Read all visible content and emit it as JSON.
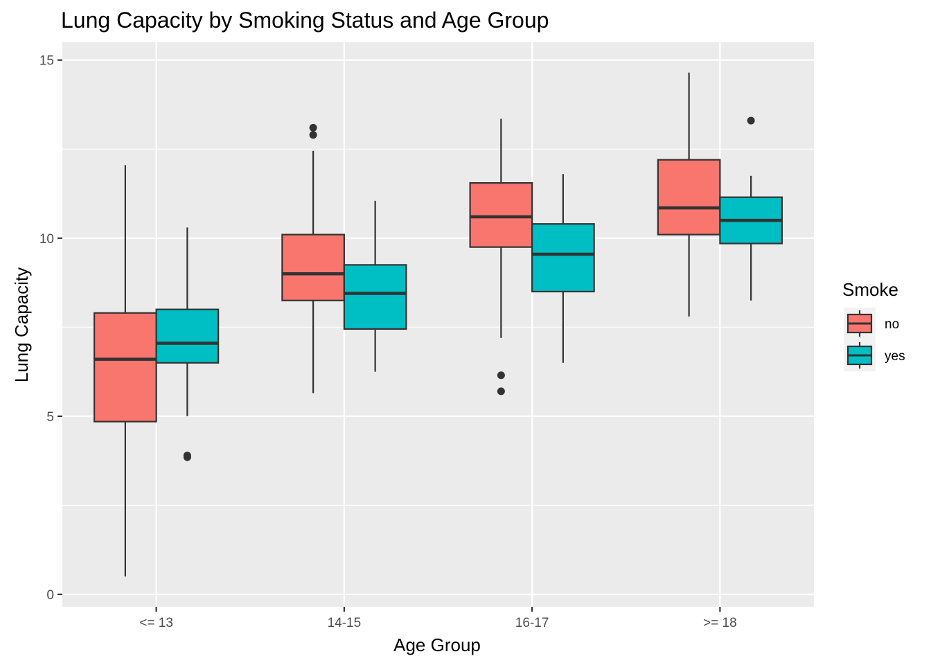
{
  "chart_data": {
    "type": "boxplot",
    "title": "Lung Capacity by Smoking Status and Age Group",
    "xlabel": "Age Group",
    "ylabel": "Lung Capacity",
    "categories": [
      "<= 13",
      "14-15",
      "16-17",
      ">= 18"
    ],
    "ylim": [
      -0.35,
      15.5
    ],
    "yticks": [
      0,
      5,
      10,
      15
    ],
    "grid": true,
    "legend": {
      "title": "Smoke",
      "position": "right"
    },
    "series": [
      {
        "name": "no",
        "color": "#F8766D",
        "boxes": [
          {
            "whisker_low": 0.5,
            "q1": 4.85,
            "median": 6.6,
            "q3": 7.9,
            "whisker_high": 12.05,
            "outliers": []
          },
          {
            "whisker_low": 5.65,
            "q1": 8.25,
            "median": 9.0,
            "q3": 10.1,
            "whisker_high": 12.45,
            "outliers": [
              12.9,
              13.1
            ]
          },
          {
            "whisker_low": 7.2,
            "q1": 9.75,
            "median": 10.6,
            "q3": 11.55,
            "whisker_high": 13.35,
            "outliers": [
              5.7,
              6.15
            ]
          },
          {
            "whisker_low": 7.8,
            "q1": 10.1,
            "median": 10.85,
            "q3": 12.2,
            "whisker_high": 14.65,
            "outliers": []
          }
        ]
      },
      {
        "name": "yes",
        "color": "#00BFC4",
        "boxes": [
          {
            "whisker_low": 5.0,
            "q1": 6.5,
            "median": 7.05,
            "q3": 8.0,
            "whisker_high": 10.3,
            "outliers": [
              3.85,
              3.9
            ]
          },
          {
            "whisker_low": 6.25,
            "q1": 7.45,
            "median": 8.45,
            "q3": 9.25,
            "whisker_high": 11.05,
            "outliers": []
          },
          {
            "whisker_low": 6.5,
            "q1": 8.5,
            "median": 9.55,
            "q3": 10.4,
            "whisker_high": 11.8,
            "outliers": []
          },
          {
            "whisker_low": 8.25,
            "q1": 9.85,
            "median": 10.5,
            "q3": 11.15,
            "whisker_high": 11.75,
            "outliers": [
              13.3
            ]
          }
        ]
      }
    ]
  }
}
